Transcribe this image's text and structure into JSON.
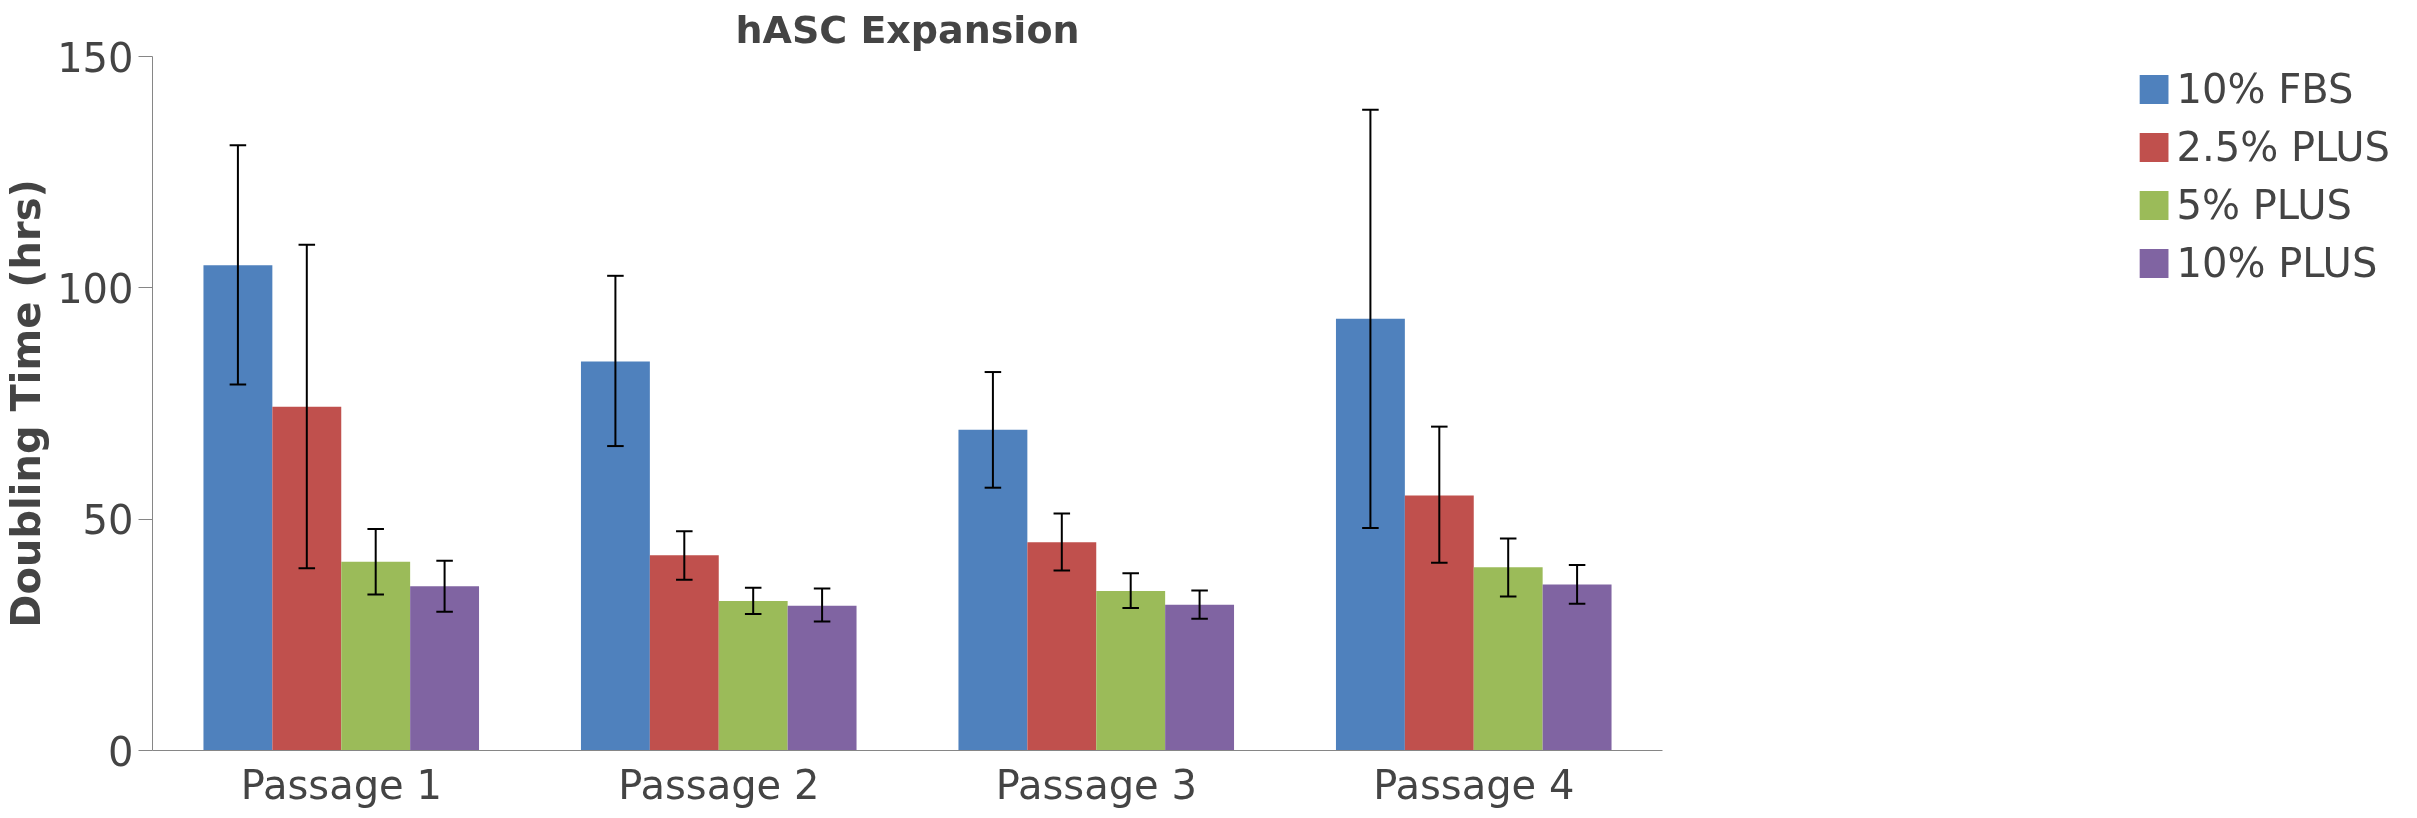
{
  "chart_data": {
    "type": "bar",
    "title": "hASC Expansion",
    "ylabel": "Doubling Time (hrs)",
    "categories": [
      "Passage 1",
      "Passage 2",
      "Passage 3",
      "Passage 4"
    ],
    "series": [
      {
        "name": "10% FBS",
        "color": "#4f81bd",
        "values": [
          104.9,
          84.1,
          69.3,
          93.3
        ],
        "errors": [
          [
            79.1,
            130.8
          ],
          [
            65.8,
            102.6
          ],
          [
            56.8,
            81.8
          ],
          [
            48.1,
            138.5
          ]
        ]
      },
      {
        "name": "2.5% PLUS",
        "color": "#c0504d",
        "values": [
          74.3,
          42.2,
          45.0,
          55.1
        ],
        "errors": [
          [
            39.4,
            109.3
          ],
          [
            36.9,
            47.4
          ],
          [
            38.9,
            51.2
          ],
          [
            40.6,
            70.0
          ]
        ]
      },
      {
        "name": "5% PLUS",
        "color": "#9bbb59",
        "values": [
          40.8,
          32.3,
          34.5,
          39.6
        ],
        "errors": [
          [
            33.7,
            47.9
          ],
          [
            29.5,
            35.2
          ],
          [
            30.8,
            38.3
          ],
          [
            33.3,
            45.8
          ]
        ]
      },
      {
        "name": "10% PLUS",
        "color": "#8064a2",
        "values": [
          35.5,
          31.3,
          31.5,
          35.9
        ],
        "errors": [
          [
            30.0,
            41.0
          ],
          [
            27.9,
            35.0
          ],
          [
            28.5,
            34.6
          ],
          [
            31.7,
            40.1
          ]
        ]
      }
    ],
    "ylim": [
      0,
      150
    ],
    "yticks": [
      0,
      50,
      100,
      150
    ],
    "grid": false,
    "legend": "right"
  }
}
